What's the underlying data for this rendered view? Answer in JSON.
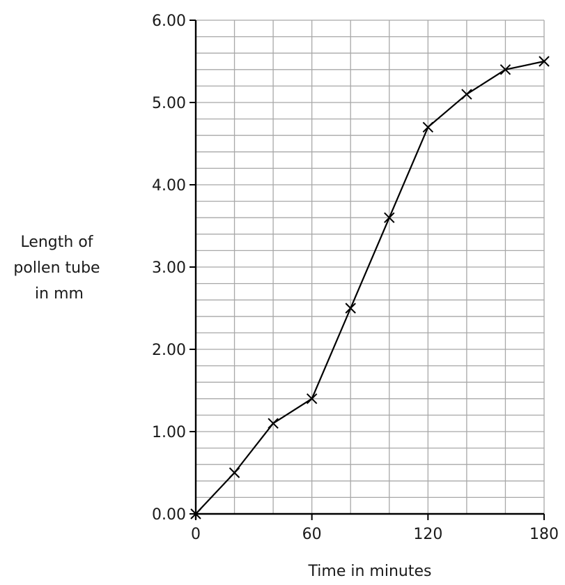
{
  "chart_data": {
    "type": "line",
    "xlabel": "Time in minutes",
    "ylabel_lines": [
      "Length of",
      "pollen tube",
      "in mm"
    ],
    "xlim": [
      0,
      180
    ],
    "ylim": [
      0,
      6
    ],
    "x_ticks": [
      0,
      60,
      120,
      180
    ],
    "x_tick_labels": [
      "0",
      "60",
      "120",
      "180"
    ],
    "y_ticks": [
      0,
      1,
      2,
      3,
      4,
      5,
      6
    ],
    "y_tick_labels": [
      "0.00",
      "1.00",
      "2.00",
      "3.00",
      "4.00",
      "5.00",
      "6.00"
    ],
    "x_minor_step": 20,
    "y_minor_step": 0.2,
    "grid": true,
    "marker": "x",
    "series": [
      {
        "x": [
          0,
          20,
          40,
          60,
          80,
          100,
          120,
          140,
          160,
          180
        ],
        "y": [
          0.0,
          0.5,
          1.1,
          1.4,
          2.5,
          3.6,
          4.7,
          5.1,
          5.4,
          5.5
        ]
      }
    ]
  }
}
